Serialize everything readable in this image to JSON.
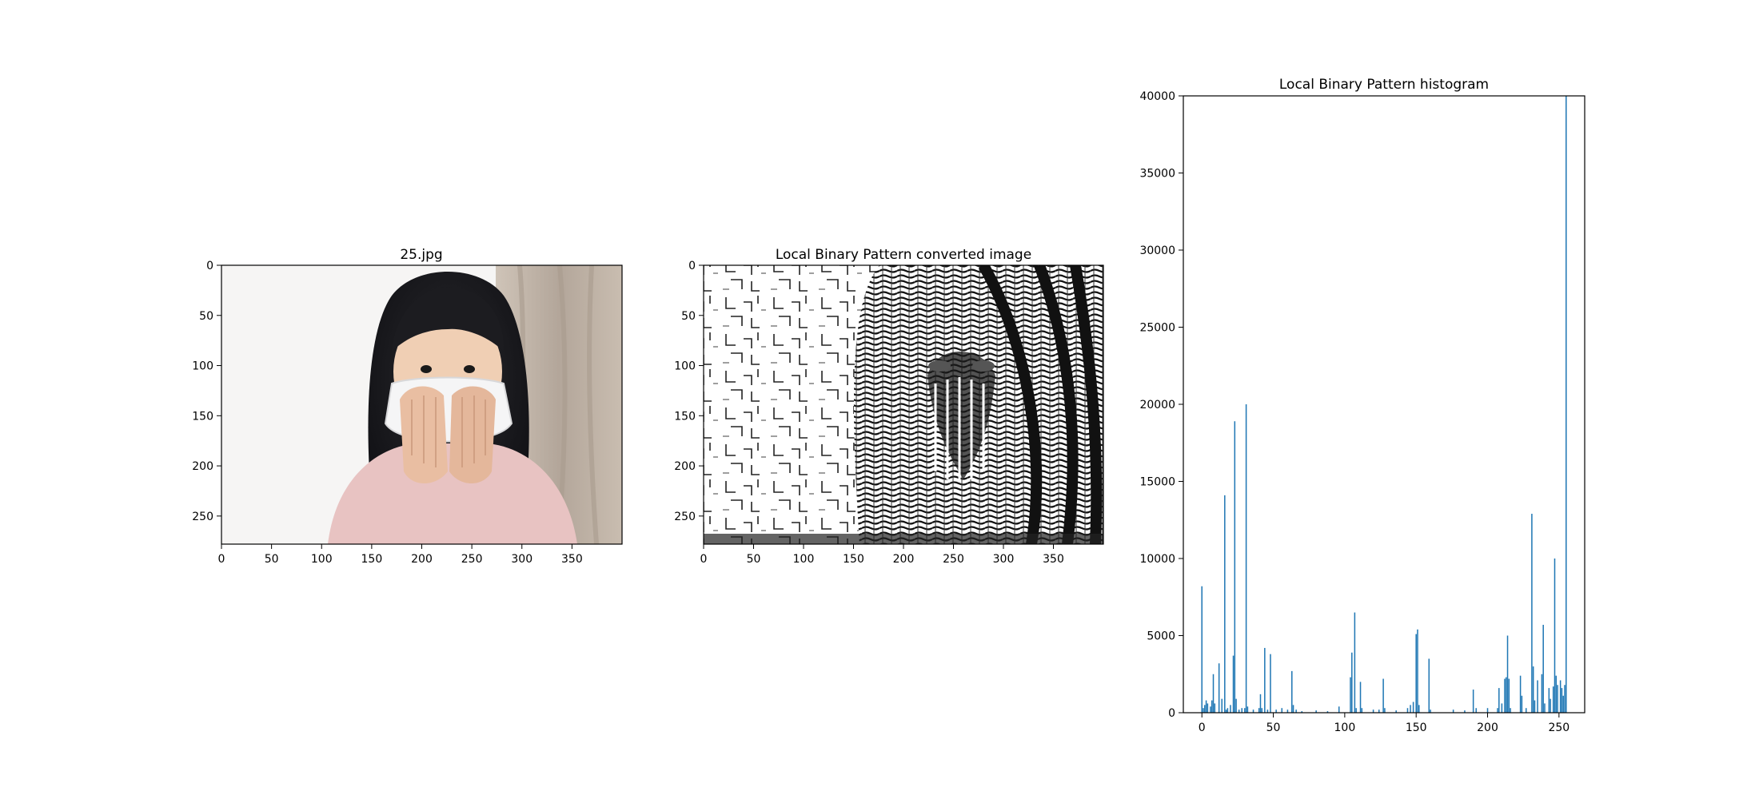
{
  "colors": {
    "bar": "#1f77b4",
    "axis": "#000000"
  },
  "panels": [
    {
      "type": "image",
      "title": "25.jpg",
      "content": "photo",
      "xlim": [
        0,
        400
      ],
      "ylim": [
        278,
        0
      ],
      "xticks": [
        0,
        50,
        100,
        150,
        200,
        250,
        300,
        350
      ],
      "yticks": [
        0,
        50,
        100,
        150,
        200,
        250
      ]
    },
    {
      "type": "image",
      "title": "Local Binary Pattern converted image",
      "content": "lbp",
      "xlim": [
        0,
        400
      ],
      "ylim": [
        278,
        0
      ],
      "xticks": [
        0,
        50,
        100,
        150,
        200,
        250,
        300,
        350
      ],
      "yticks": [
        0,
        50,
        100,
        150,
        200,
        250
      ]
    }
  ],
  "chart_data": {
    "type": "bar",
    "title": "Local Binary Pattern histogram",
    "xlim": [
      -13,
      268
    ],
    "ylim": [
      0,
      40000
    ],
    "xticks": [
      0,
      50,
      100,
      150,
      200,
      250
    ],
    "yticks": [
      0,
      5000,
      10000,
      15000,
      20000,
      25000,
      30000,
      35000,
      40000
    ],
    "bars": [
      [
        0,
        8200
      ],
      [
        1,
        300
      ],
      [
        2,
        500
      ],
      [
        3,
        800
      ],
      [
        4,
        600
      ],
      [
        6,
        400
      ],
      [
        7,
        800
      ],
      [
        8,
        2500
      ],
      [
        9,
        600
      ],
      [
        12,
        3200
      ],
      [
        14,
        900
      ],
      [
        16,
        14100
      ],
      [
        17,
        200
      ],
      [
        18,
        300
      ],
      [
        20,
        500
      ],
      [
        22,
        3700
      ],
      [
        23,
        18900
      ],
      [
        24,
        900
      ],
      [
        26,
        200
      ],
      [
        28,
        300
      ],
      [
        30,
        300
      ],
      [
        31,
        20000
      ],
      [
        32,
        400
      ],
      [
        36,
        200
      ],
      [
        40,
        300
      ],
      [
        41,
        1200
      ],
      [
        42,
        300
      ],
      [
        44,
        4200
      ],
      [
        46,
        200
      ],
      [
        48,
        3800
      ],
      [
        52,
        200
      ],
      [
        56,
        300
      ],
      [
        60,
        200
      ],
      [
        63,
        2700
      ],
      [
        64,
        500
      ],
      [
        66,
        200
      ],
      [
        70,
        100
      ],
      [
        80,
        150
      ],
      [
        88,
        100
      ],
      [
        96,
        400
      ],
      [
        104,
        2300
      ],
      [
        105,
        3900
      ],
      [
        107,
        6500
      ],
      [
        108,
        300
      ],
      [
        111,
        2000
      ],
      [
        112,
        300
      ],
      [
        120,
        200
      ],
      [
        124,
        200
      ],
      [
        127,
        2200
      ],
      [
        128,
        300
      ],
      [
        136,
        150
      ],
      [
        144,
        300
      ],
      [
        146,
        500
      ],
      [
        148,
        700
      ],
      [
        150,
        5100
      ],
      [
        151,
        5400
      ],
      [
        152,
        500
      ],
      [
        159,
        3500
      ],
      [
        160,
        200
      ],
      [
        176,
        200
      ],
      [
        184,
        150
      ],
      [
        190,
        1500
      ],
      [
        192,
        300
      ],
      [
        200,
        300
      ],
      [
        207,
        300
      ],
      [
        208,
        1600
      ],
      [
        210,
        600
      ],
      [
        212,
        2200
      ],
      [
        213,
        2300
      ],
      [
        214,
        5000
      ],
      [
        215,
        2200
      ],
      [
        216,
        300
      ],
      [
        223,
        2400
      ],
      [
        224,
        1100
      ],
      [
        227,
        300
      ],
      [
        231,
        12900
      ],
      [
        232,
        3000
      ],
      [
        233,
        800
      ],
      [
        235,
        2100
      ],
      [
        238,
        2500
      ],
      [
        239,
        5700
      ],
      [
        240,
        600
      ],
      [
        243,
        1600
      ],
      [
        244,
        900
      ],
      [
        246,
        1700
      ],
      [
        247,
        10000
      ],
      [
        248,
        2400
      ],
      [
        249,
        1800
      ],
      [
        251,
        2100
      ],
      [
        252,
        1600
      ],
      [
        253,
        1100
      ],
      [
        254,
        1800
      ],
      [
        255,
        40000
      ]
    ]
  }
}
